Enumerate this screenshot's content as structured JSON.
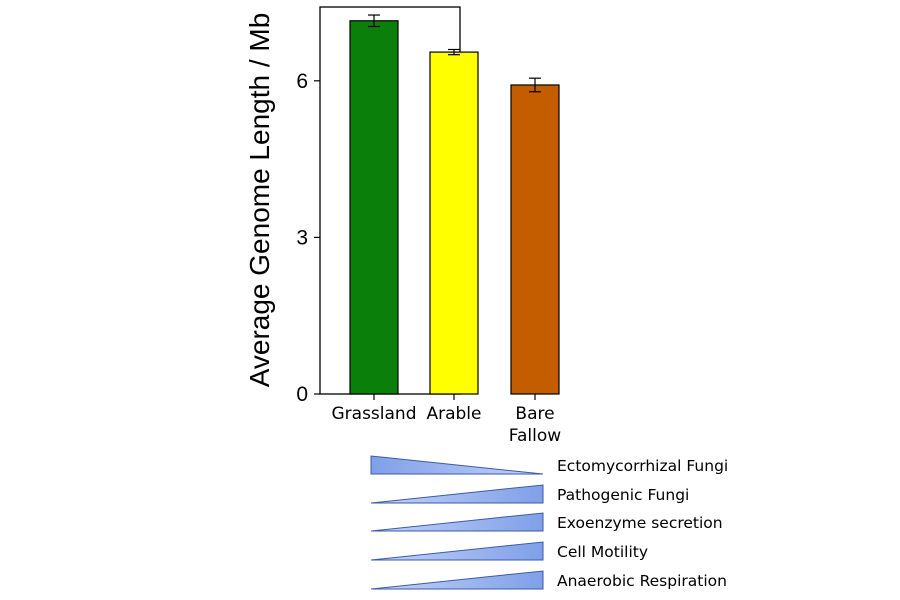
{
  "chart_data": {
    "type": "bar",
    "title": "",
    "xlabel": "",
    "ylabel": "Average Genome Length / Mb",
    "ylim": [
      0,
      7.4
    ],
    "yticks": [
      0,
      3,
      6
    ],
    "categories": [
      {
        "lines": [
          "Grassland"
        ]
      },
      {
        "lines": [
          "Arable"
        ]
      },
      {
        "lines": [
          "Bare",
          "Fallow"
        ]
      }
    ],
    "values": [
      7.15,
      6.55,
      5.92
    ],
    "errors": [
      0.11,
      0.05,
      0.13
    ],
    "bar_colors": [
      "#0a800a",
      "#ffff00",
      "#c45c00"
    ],
    "grid": false,
    "legend": "none"
  },
  "trends": {
    "fill_color": "#8eaaf0",
    "stroke_color": "#3b5aa8",
    "items": [
      {
        "label": "Ectomycorrhizal  Fungi",
        "direction": "decreasing"
      },
      {
        "label": "Pathogenic Fungi",
        "direction": "increasing"
      },
      {
        "label": "Exoenzyme secretion",
        "direction": "increasing"
      },
      {
        "label": "Cell Motility",
        "direction": "increasing"
      },
      {
        "label": "Anaerobic Respiration",
        "direction": "increasing"
      }
    ]
  }
}
